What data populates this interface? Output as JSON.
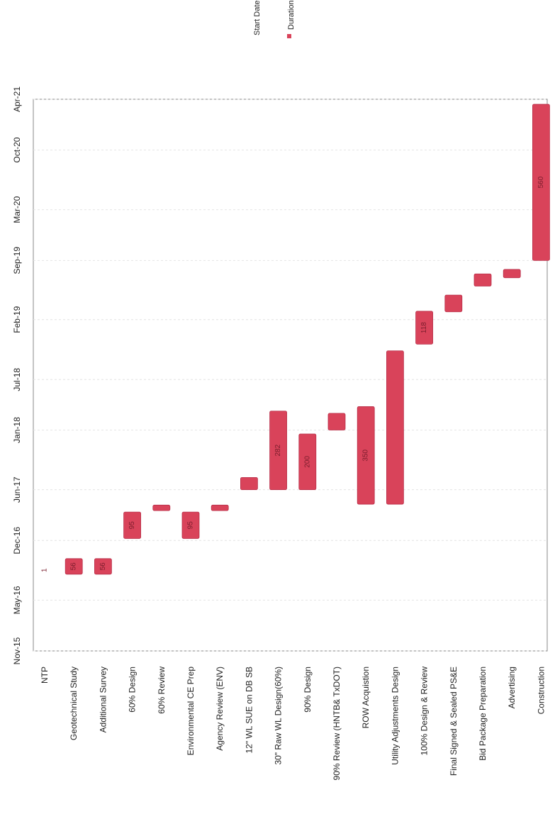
{
  "chart_data": {
    "type": "bar",
    "subtype": "gantt",
    "orientation": "rotated-90",
    "title": "",
    "xlabel": "",
    "ylabel": "",
    "date_axis": {
      "ticks": [
        "Nov-15",
        "May-16",
        "Dec-16",
        "Jun-17",
        "Jan-18",
        "Jul-18",
        "Feb-19",
        "Sep-19",
        "Mar-20",
        "Oct-20",
        "Apr-21"
      ],
      "range": [
        "Nov-15",
        "Apr-21"
      ]
    },
    "legend": {
      "position": "top-right",
      "entries": [
        "Start Date",
        "Durations (days)"
      ]
    },
    "colors": {
      "bar": "#d9435a",
      "bar_dark": "#b8304a",
      "axis": "#888888"
    },
    "categories": [
      "NTP",
      "Geotechnical Study",
      "Additional Survey",
      "60% Design",
      "60% Review",
      "Environmental CE Prep",
      "Agency Review (ENV)",
      "12\" WL SUE on DB SB",
      "30\" Raw WL Design(60%)",
      "90% Design",
      "90% Review (HNTB& TxDOT)",
      "ROW Acquistion",
      "Utility Adjustments Design",
      "100% Design & Review",
      "Final Signed & Sealed PS&E",
      "Bid Package Preparation",
      "Advertising",
      "Construction"
    ],
    "series": [
      {
        "name": "Start Date",
        "values": [
          "2016-08-01",
          "2016-08-02",
          "2016-08-02",
          "2016-12-08",
          "2017-03-18",
          "2016-12-08",
          "2017-03-18",
          "2017-06-01",
          "2017-06-01",
          "2017-06-01",
          "2018-01-01",
          "2017-04-10",
          "2017-04-10",
          "2018-11-05",
          "2019-03-01",
          "2019-06-01",
          "2019-07-01",
          "2019-09-01"
        ]
      },
      {
        "name": "Durations (days)",
        "values": [
          1,
          56,
          56,
          95,
          20,
          95,
          20,
          44,
          282,
          200,
          60,
          350,
          550,
          118,
          60,
          44,
          30,
          560
        ]
      }
    ],
    "data_labels": [
      "1",
      "56",
      "56",
      "95",
      "",
      "95",
      "",
      "",
      "282",
      "200",
      "",
      "350",
      "",
      "118",
      "",
      "",
      "",
      "560"
    ]
  }
}
